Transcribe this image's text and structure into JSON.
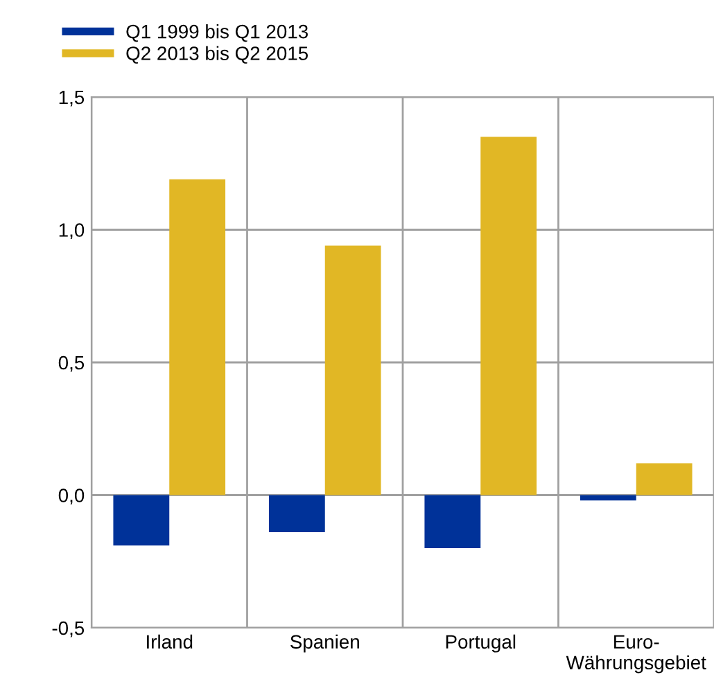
{
  "chart_data": {
    "type": "bar",
    "categories": [
      "Irland",
      "Spanien",
      "Portugal",
      "Euro-\nWährungsgebiet"
    ],
    "series": [
      {
        "name": "Q1 1999 bis Q1 2013",
        "color": "#003299",
        "values": [
          -0.19,
          -0.14,
          -0.2,
          -0.02
        ]
      },
      {
        "name": "Q2 2013 bis Q2 2015",
        "color": "#e1b725",
        "values": [
          1.19,
          0.94,
          1.35,
          0.12
        ]
      }
    ],
    "ylim": [
      -0.5,
      1.5
    ],
    "yticks": [
      {
        "value": -0.5,
        "label": "-0,5"
      },
      {
        "value": 0,
        "label": "0,0"
      },
      {
        "value": 0.5,
        "label": "0,5"
      },
      {
        "value": 1.0,
        "label": "1,0"
      },
      {
        "value": 1.5,
        "label": "1,5"
      }
    ],
    "grid": true,
    "legend": "top left"
  }
}
